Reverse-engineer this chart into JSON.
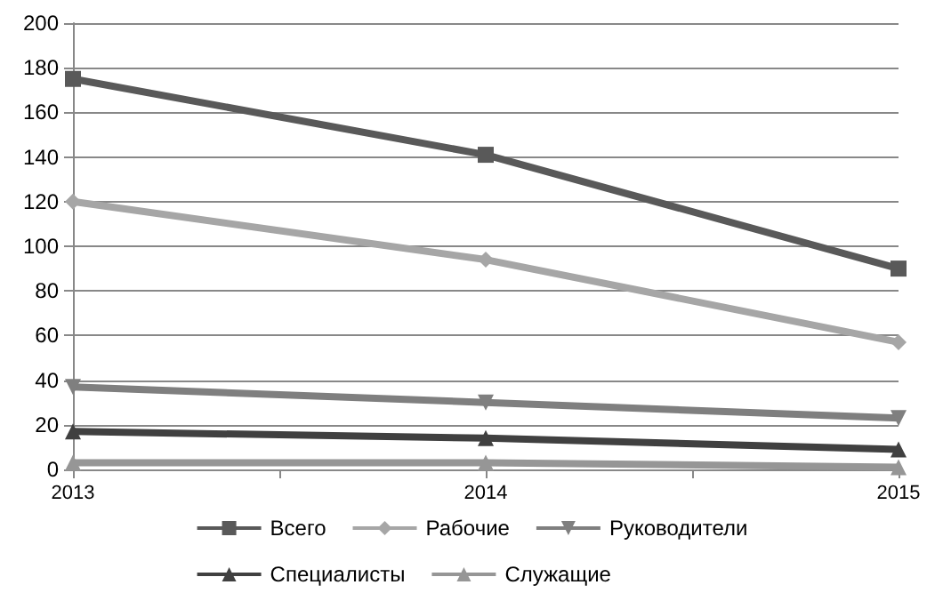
{
  "chart_data": {
    "type": "line",
    "x": [
      2013,
      2014,
      2015
    ],
    "xlim": [
      2013,
      2015
    ],
    "xticks": [
      2013,
      {
        "value": 2013.5,
        "label": null
      },
      2014,
      {
        "value": 2014.5,
        "label": null
      },
      2015
    ],
    "ylim": [
      0,
      200
    ],
    "yticks": [
      0,
      20,
      40,
      60,
      80,
      100,
      120,
      140,
      160,
      180,
      200
    ],
    "grid": "y",
    "legend": "bottom",
    "series": [
      {
        "name": "Всего",
        "color": "#595959",
        "marker": "square",
        "values": [
          175,
          141,
          90
        ]
      },
      {
        "name": "Рабочие",
        "color": "#a6a6a6",
        "marker": "diamond",
        "values": [
          120,
          94,
          57
        ]
      },
      {
        "name": "Руководители",
        "color": "#7f7f7f",
        "marker": "triangle-down",
        "values": [
          37,
          30,
          23
        ]
      },
      {
        "name": "Специалисты",
        "color": "#404040",
        "marker": "triangle",
        "values": [
          17,
          14,
          9
        ]
      },
      {
        "name": "Служащие",
        "color": "#969696",
        "marker": "triangle",
        "values": [
          3,
          3,
          1
        ]
      }
    ]
  }
}
